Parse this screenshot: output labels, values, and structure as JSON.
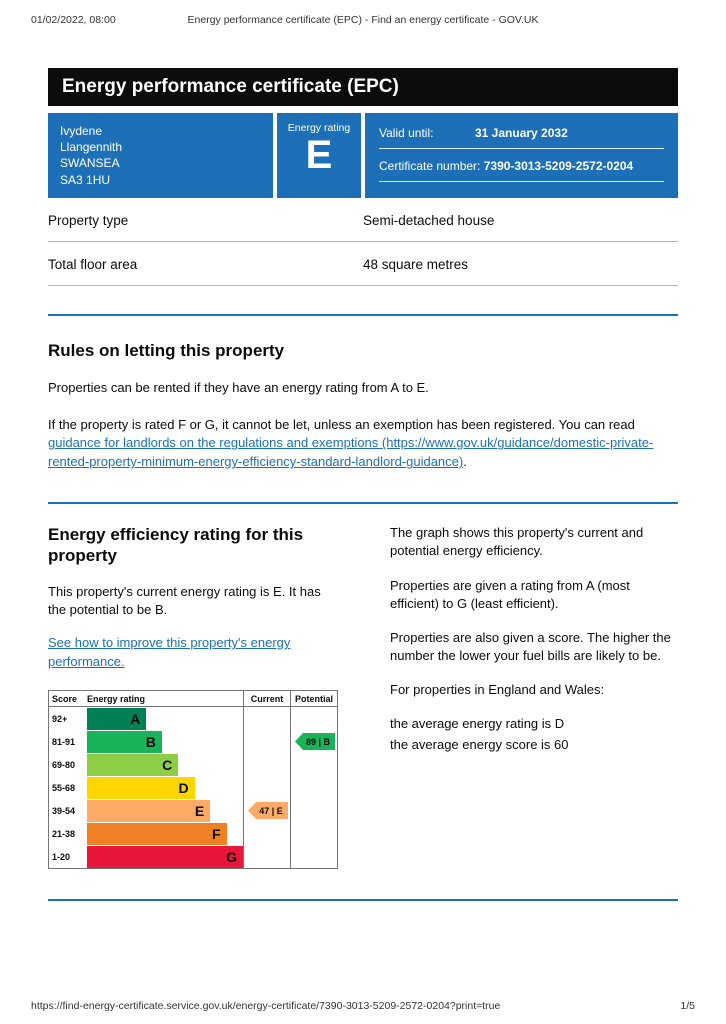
{
  "theme": {
    "brand_blue": "#1d70b8",
    "banner_bg": "#0b0c0c",
    "link_color": "#1d70b8",
    "text_color": "#0b0c0c",
    "divider_gray": "#b1b4b6"
  },
  "print_header": {
    "datetime": "01/02/2022, 08:00",
    "title": "Energy performance certificate (EPC) - Find an energy certificate - GOV.UK"
  },
  "banner": {
    "title": "Energy performance certificate (EPC)"
  },
  "summary": {
    "address": [
      "Ivydene",
      "Llangennith",
      "SWANSEA",
      "SA3 1HU"
    ],
    "rating_label": "Energy rating",
    "rating": "E",
    "valid_until_label": "Valid until:",
    "valid_until": "31 January 2032",
    "certificate_number_label": "Certificate number:",
    "certificate_number": "7390-3013-5209-2572-0204"
  },
  "property_details": [
    {
      "label": "Property type",
      "value": "Semi-detached house"
    },
    {
      "label": "Total floor area",
      "value": "48 square metres"
    }
  ],
  "rules": {
    "heading": "Rules on letting this property",
    "p1": "Properties can be rented if they have an energy rating from A to E.",
    "p2_before": "If the property is rated F or G, it cannot be let, unless an exemption has been registered. You can read ",
    "p2_link": "guidance for landlords on the regulations and exemptions (https://www.gov.uk/guidance/domestic-private-rented-property-minimum-energy-efficiency-standard-landlord-guidance)",
    "p2_after": "."
  },
  "efficiency": {
    "heading": "Energy efficiency rating for this property",
    "p1": "This property's current energy rating is E. It has the potential to be B.",
    "improve_link": "See how to improve this property's energy performance.",
    "right": [
      "The graph shows this property's current and potential energy efficiency.",
      "Properties are given a rating from A (most efficient) to G (least efficient).",
      "Properties are also given a score. The higher the number the lower your fuel bills are likely to be.",
      "For properties in England and Wales:",
      "the average energy rating is D",
      "the average energy score is 60"
    ]
  },
  "chart_data": {
    "type": "bar",
    "title": "Energy efficiency rating",
    "columns": [
      "Score",
      "Energy rating",
      "Current",
      "Potential"
    ],
    "bands": [
      {
        "score": "92+",
        "letter": "A",
        "color": "#008054",
        "width_pct": 38
      },
      {
        "score": "81-91",
        "letter": "B",
        "color": "#19b459",
        "width_pct": 48
      },
      {
        "score": "69-80",
        "letter": "C",
        "color": "#8dce46",
        "width_pct": 58.5
      },
      {
        "score": "55-68",
        "letter": "D",
        "color": "#ffd500",
        "width_pct": 69
      },
      {
        "score": "39-54",
        "letter": "E",
        "color": "#fcaa65",
        "width_pct": 79
      },
      {
        "score": "21-38",
        "letter": "F",
        "color": "#ef8023",
        "width_pct": 89.5
      },
      {
        "score": "1-20",
        "letter": "G",
        "color": "#e9153b",
        "width_pct": 100
      }
    ],
    "current": {
      "kind": "current",
      "score": 47,
      "letter": "E",
      "band_index": 4,
      "color": "#fcaa65"
    },
    "potential": {
      "kind": "potential",
      "score": 89,
      "letter": "B",
      "band_index": 1,
      "color": "#19b459"
    }
  },
  "footer": {
    "url": "https://find-energy-certificate.service.gov.uk/energy-certificate/7390-3013-5209-2572-0204?print=true",
    "page": "1/5"
  }
}
